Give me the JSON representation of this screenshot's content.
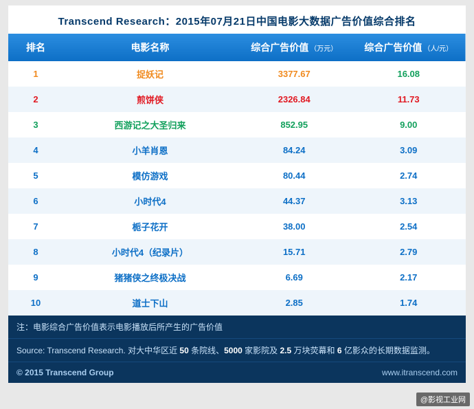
{
  "title": "Transcend Research：2015年07月21日中国电影大数据广告价值综合排名",
  "columns": {
    "rank": "排名",
    "name": "电影名称",
    "val1": "综合广告价值",
    "val1_unit": "（万元）",
    "val2": "综合广告价值",
    "val2_unit": "（人/元）"
  },
  "rows": [
    {
      "rank": "1",
      "name": "捉妖记",
      "v1": "3377.67",
      "v2": "16.08",
      "color": "#f08a1e",
      "name_color": "#f08a1e",
      "v1_color": "#f08a1e",
      "v2_color": "#12a05c",
      "bg": "#ffffff"
    },
    {
      "rank": "2",
      "name": "煎饼侠",
      "v1": "2326.84",
      "v2": "11.73",
      "color": "#e11922",
      "name_color": "#e11922",
      "v1_color": "#e11922",
      "v2_color": "#e11922",
      "bg": "#eef5fb"
    },
    {
      "rank": "3",
      "name": "西游记之大圣归来",
      "v1": "852.95",
      "v2": "9.00",
      "color": "#12a05c",
      "name_color": "#12a05c",
      "v1_color": "#12a05c",
      "v2_color": "#12a05c",
      "bg": "#ffffff"
    },
    {
      "rank": "4",
      "name": "小羊肖恩",
      "v1": "84.24",
      "v2": "3.09",
      "color": "#0d6fc6",
      "name_color": "#0d6fc6",
      "v1_color": "#0d6fc6",
      "v2_color": "#0d6fc6",
      "bg": "#eef5fb"
    },
    {
      "rank": "5",
      "name": "模仿游戏",
      "v1": "80.44",
      "v2": "2.74",
      "color": "#0d6fc6",
      "name_color": "#0d6fc6",
      "v1_color": "#0d6fc6",
      "v2_color": "#0d6fc6",
      "bg": "#ffffff"
    },
    {
      "rank": "6",
      "name": "小时代4",
      "v1": "44.37",
      "v2": "3.13",
      "color": "#0d6fc6",
      "name_color": "#0d6fc6",
      "v1_color": "#0d6fc6",
      "v2_color": "#0d6fc6",
      "bg": "#eef5fb"
    },
    {
      "rank": "7",
      "name": "栀子花开",
      "v1": "38.00",
      "v2": "2.54",
      "color": "#0d6fc6",
      "name_color": "#0d6fc6",
      "v1_color": "#0d6fc6",
      "v2_color": "#0d6fc6",
      "bg": "#ffffff"
    },
    {
      "rank": "8",
      "name": "小时代4（纪录片）",
      "v1": "15.71",
      "v2": "2.79",
      "color": "#0d6fc6",
      "name_color": "#0d6fc6",
      "v1_color": "#0d6fc6",
      "v2_color": "#0d6fc6",
      "bg": "#eef5fb"
    },
    {
      "rank": "9",
      "name": "猪猪侠之终极决战",
      "v1": "6.69",
      "v2": "2.17",
      "color": "#0d6fc6",
      "name_color": "#0d6fc6",
      "v1_color": "#0d6fc6",
      "v2_color": "#0d6fc6",
      "bg": "#ffffff"
    },
    {
      "rank": "10",
      "name": "道士下山",
      "v1": "2.85",
      "v2": "1.74",
      "color": "#0d6fc6",
      "name_color": "#0d6fc6",
      "v1_color": "#0d6fc6",
      "v2_color": "#0d6fc6",
      "bg": "#eef5fb"
    }
  ],
  "note": "注：电影综合广告价值表示电影播放后所产生的广告价值",
  "source_prefix": "Source: Transcend Research. 对大中华区近 ",
  "source_parts": [
    "50",
    " 条院线、",
    "5000",
    " 家影院及 ",
    "2.5",
    " 万块荧幕和 ",
    "6",
    " 亿影众的长期数据监测。"
  ],
  "copyright": "© 2015 Transcend Group",
  "website": "www.itranscend.com",
  "watermark": "@影视工业网"
}
